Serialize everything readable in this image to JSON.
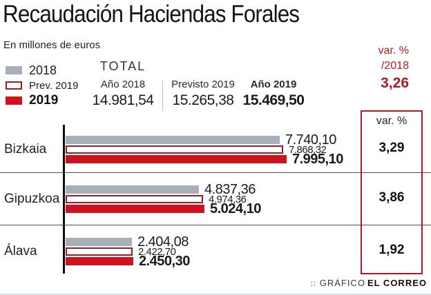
{
  "title": "Recaudación Haciendas Forales",
  "subtitle": "En millones de euros",
  "header": {
    "var_label_line1": "var. %",
    "var_label_line2": "/2018",
    "var_total_value": "3,26"
  },
  "legend": [
    {
      "label": "2018",
      "swatch": "gray"
    },
    {
      "label": "Prev. 2019",
      "swatch": "outlined"
    },
    {
      "label": "2019",
      "swatch": "red"
    }
  ],
  "totals": {
    "heading": "TOTAL",
    "columns": [
      {
        "label": "Año 2018",
        "value": "14.981,54"
      },
      {
        "label": "Previsto 2019",
        "value": "15.265,38"
      },
      {
        "label": "Año 2019",
        "value": "15.469,50"
      }
    ]
  },
  "var_box": {
    "header": "var. %"
  },
  "chart_data": {
    "type": "bar",
    "orientation": "horizontal",
    "title": "Recaudación Haciendas Forales",
    "unit": "millones de euros",
    "categories": [
      "Bizkaia",
      "Gipuzkoa",
      "Álava"
    ],
    "series": [
      {
        "name": "2018",
        "style": "s2018",
        "values": [
          7740.1,
          4837.36,
          2404.08
        ],
        "labels": [
          "7.740,10",
          "4.837,36",
          "2.404,08"
        ]
      },
      {
        "name": "Prev. 2019",
        "style": "sprev",
        "values": [
          7868.32,
          4974.36,
          2422.7
        ],
        "labels": [
          "7.868,32",
          "4.974,36",
          "2.422,70"
        ]
      },
      {
        "name": "2019",
        "style": "s2019",
        "values": [
          7995.1,
          5024.1,
          2450.3
        ],
        "labels": [
          "7.995,10",
          "5.024,10",
          "2.450,30"
        ]
      }
    ],
    "var_pct": [
      3.29,
      3.86,
      1.92
    ],
    "var_pct_labels": [
      "3,29",
      "3,86",
      "1,92"
    ],
    "totals": {
      "ano_2018": 14981.54,
      "previsto_2019": 15265.38,
      "ano_2019": 15469.5
    },
    "var_total": 3.26,
    "xlim": [
      0,
      8000
    ],
    "grid": false,
    "legend_position": "top-left"
  },
  "footer": {
    "dots": "::",
    "label": "GRÁFICO",
    "brand": "EL CORREO"
  },
  "colors": {
    "bar_gray": "#a7b0b9",
    "bar_red": "#d2111f",
    "outline_dark_red": "#9e1a22",
    "accent_red_text": "#b11a21",
    "separator": "#4a4a4a"
  }
}
